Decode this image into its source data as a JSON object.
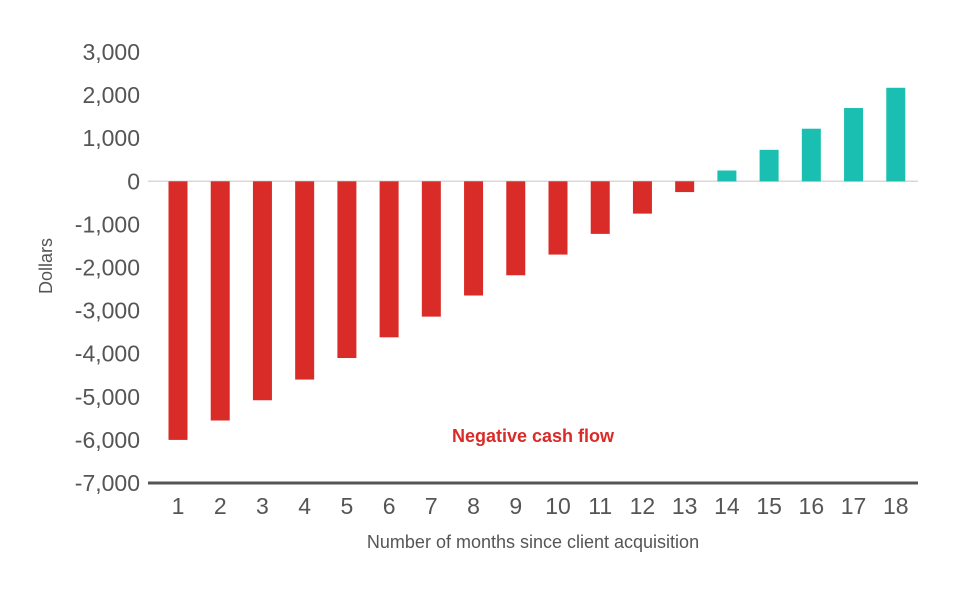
{
  "chart_data": {
    "type": "bar",
    "categories": [
      "1",
      "2",
      "3",
      "4",
      "5",
      "6",
      "7",
      "8",
      "9",
      "10",
      "11",
      "12",
      "13",
      "14",
      "15",
      "16",
      "17",
      "18"
    ],
    "values": [
      -6000,
      -5550,
      -5080,
      -4600,
      -4100,
      -3620,
      -3140,
      -2650,
      -2180,
      -1700,
      -1220,
      -750,
      -250,
      250,
      730,
      1220,
      1700,
      2170
    ],
    "xlabel": "Number of months since client acquisition",
    "ylabel": "Dollars",
    "ylim": [
      -7000,
      3000
    ],
    "yticks": [
      3000,
      2000,
      1000,
      0,
      -1000,
      -2000,
      -3000,
      -4000,
      -5000,
      -6000,
      -7000
    ],
    "ytick_labels": [
      "3,000",
      "2,000",
      "1,000",
      "0",
      "-1,000",
      "-2,000",
      "-3,000",
      "-4,000",
      "-5,000",
      "-6,000",
      "-7,000"
    ],
    "grid": false,
    "annotation": "Negative cash flow",
    "colors": {
      "negative": "#d92b27",
      "positive": "#1bbfb1",
      "annotation": "#d92b27",
      "axis": "#555555",
      "zero_line": "#d8d8d8"
    }
  }
}
